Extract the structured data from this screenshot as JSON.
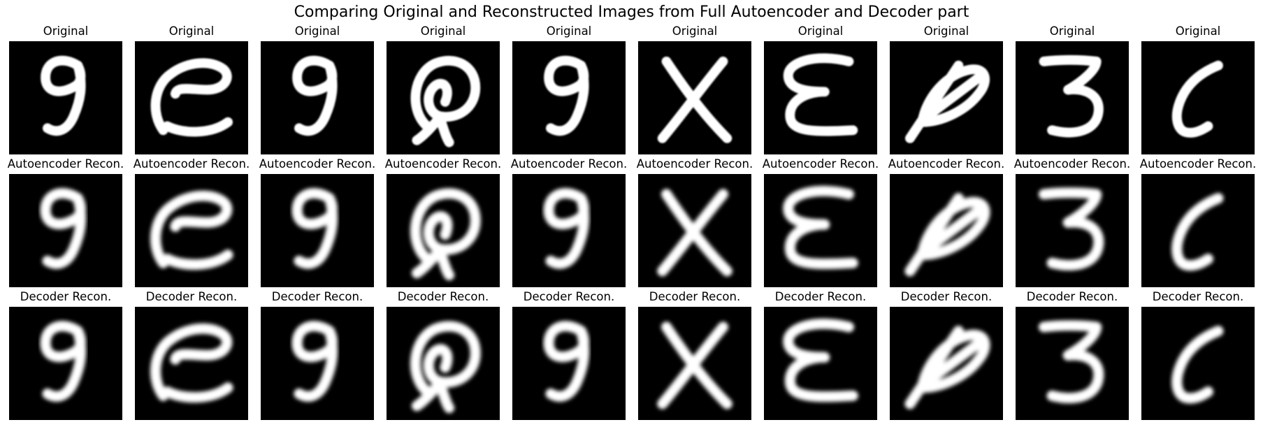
{
  "figure": {
    "title": "Comparing Original and Reconstructed Images from Full Autoencoder and Decoder part"
  },
  "rows": [
    {
      "key": "original",
      "label": "Original",
      "blur": 0.6,
      "glyphs": [
        "9",
        "e",
        "9",
        "q-loop",
        "9",
        "x",
        "e-cap",
        "leaf",
        "3",
        "c"
      ]
    },
    {
      "key": "autoencoder",
      "label": "Autoencoder Recon.",
      "blur": 1.8,
      "glyphs": [
        "9",
        "e",
        "9",
        "q-loop",
        "9",
        "x",
        "e-cap",
        "leaf",
        "3",
        "c"
      ]
    },
    {
      "key": "decoder",
      "label": "Decoder Recon.",
      "blur": 1.8,
      "glyphs": [
        "9",
        "e",
        "9",
        "q-loop",
        "9",
        "x",
        "e-cap",
        "leaf",
        "3",
        "c"
      ]
    }
  ],
  "colors": {
    "background": "#000000",
    "stroke": "#ffffff"
  }
}
